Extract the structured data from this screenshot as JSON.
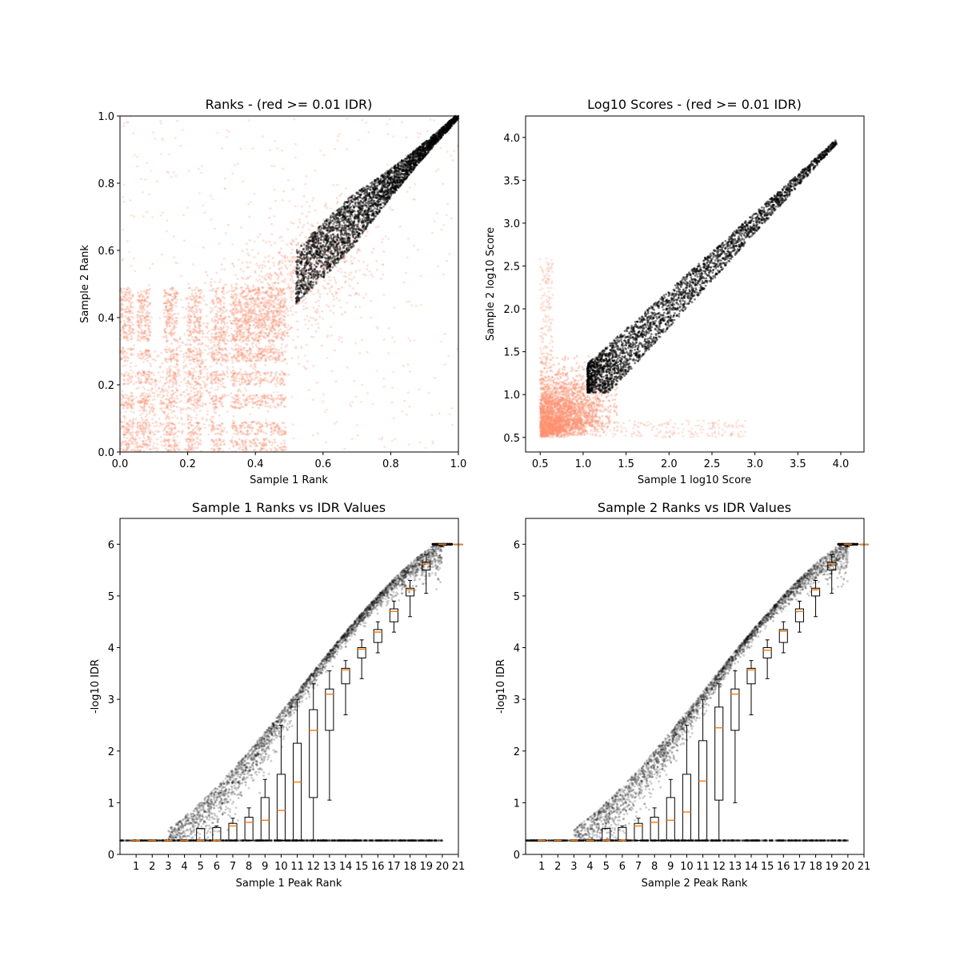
{
  "chart_data": [
    {
      "id": "ranks",
      "type": "scatter",
      "title": "Ranks - (red >= 0.01 IDR)",
      "xlabel": "Sample 1 Rank",
      "ylabel": "Sample 2 Rank",
      "xlim": [
        0,
        1
      ],
      "ylim": [
        0,
        1
      ],
      "xticks": [
        0.0,
        0.2,
        0.4,
        0.6,
        0.8,
        1.0
      ],
      "yticks": [
        0.0,
        0.2,
        0.4,
        0.6,
        0.8,
        1.0
      ],
      "xtick_labels": [
        "0.0",
        "0.2",
        "0.4",
        "0.6",
        "0.8",
        "1.0"
      ],
      "ytick_labels": [
        "0.0",
        "0.2",
        "0.4",
        "0.6",
        "0.8",
        "1.0"
      ],
      "colors": {
        "low_idr": "#ff9071",
        "high_idr": "#000000"
      }
    },
    {
      "id": "scores",
      "type": "scatter",
      "title": "Log10 Scores - (red >= 0.01 IDR)",
      "xlabel": "Sample 1 log10 Score",
      "ylabel": "Sample 2 log10 Score",
      "xlim": [
        0.33,
        4.27
      ],
      "ylim": [
        0.33,
        4.25
      ],
      "xticks": [
        0.5,
        1.0,
        1.5,
        2.0,
        2.5,
        3.0,
        3.5,
        4.0
      ],
      "yticks": [
        0.5,
        1.0,
        1.5,
        2.0,
        2.5,
        3.0,
        3.5,
        4.0
      ],
      "xtick_labels": [
        "0.5",
        "1.0",
        "1.5",
        "2.0",
        "2.5",
        "3.0",
        "3.5",
        "4.0"
      ],
      "ytick_labels": [
        "0.5",
        "1.0",
        "1.5",
        "2.0",
        "2.5",
        "3.0",
        "3.5",
        "4.0"
      ],
      "colors": {
        "low_idr": "#ff9071",
        "high_idr": "#000000"
      }
    },
    {
      "id": "s1idr",
      "type": "scatter",
      "title": "Sample 1 Ranks vs IDR Values",
      "xlabel": "Sample 1 Peak Rank",
      "ylabel": "-log10 IDR",
      "xlim": [
        0,
        21
      ],
      "ylim": [
        0,
        6.5
      ],
      "xticks": [
        1,
        2,
        3,
        4,
        5,
        6,
        7,
        8,
        9,
        10,
        11,
        12,
        13,
        14,
        15,
        16,
        17,
        18,
        19,
        20,
        21
      ],
      "yticks": [
        0,
        1,
        2,
        3,
        4,
        5,
        6
      ],
      "xtick_labels": [
        "1",
        "2",
        "3",
        "4",
        "5",
        "6",
        "7",
        "8",
        "9",
        "10",
        "11",
        "12",
        "13",
        "14",
        "15",
        "16",
        "17",
        "18",
        "19",
        "20",
        "21"
      ],
      "ytick_labels": [
        "0",
        "1",
        "2",
        "3",
        "4",
        "5",
        "6"
      ],
      "boxes": [
        {
          "pos": 1,
          "q1": 0.27,
          "med": 0.27,
          "q3": 0.27,
          "lo": 0.27,
          "hi": 0.27
        },
        {
          "pos": 2,
          "q1": 0.27,
          "med": 0.27,
          "q3": 0.27,
          "lo": 0.27,
          "hi": 0.27
        },
        {
          "pos": 3,
          "q1": 0.27,
          "med": 0.27,
          "q3": 0.27,
          "lo": 0.27,
          "hi": 0.27
        },
        {
          "pos": 4,
          "q1": 0.27,
          "med": 0.27,
          "q3": 0.27,
          "lo": 0.27,
          "hi": 0.27
        },
        {
          "pos": 5,
          "q1": 0.27,
          "med": 0.27,
          "q3": 0.5,
          "lo": 0.27,
          "hi": 0.5
        },
        {
          "pos": 6,
          "q1": 0.27,
          "med": 0.27,
          "q3": 0.52,
          "lo": 0.27,
          "hi": 0.55
        },
        {
          "pos": 7,
          "q1": 0.27,
          "med": 0.55,
          "q3": 0.6,
          "lo": 0.27,
          "hi": 0.7
        },
        {
          "pos": 8,
          "q1": 0.27,
          "med": 0.62,
          "q3": 0.72,
          "lo": 0.27,
          "hi": 0.9
        },
        {
          "pos": 9,
          "q1": 0.27,
          "med": 0.66,
          "q3": 1.1,
          "lo": 0.27,
          "hi": 1.45
        },
        {
          "pos": 10,
          "q1": 0.27,
          "med": 0.85,
          "q3": 1.55,
          "lo": 0.27,
          "hi": 2.5
        },
        {
          "pos": 11,
          "q1": 0.27,
          "med": 1.4,
          "q3": 2.15,
          "lo": 0.27,
          "hi": 3.0
        },
        {
          "pos": 12,
          "q1": 1.1,
          "med": 2.4,
          "q3": 2.8,
          "lo": 0.27,
          "hi": 3.3
        },
        {
          "pos": 13,
          "q1": 2.4,
          "med": 3.1,
          "q3": 3.2,
          "lo": 1.05,
          "hi": 3.55
        },
        {
          "pos": 14,
          "q1": 3.3,
          "med": 3.57,
          "q3": 3.6,
          "lo": 2.7,
          "hi": 3.75
        },
        {
          "pos": 15,
          "q1": 3.8,
          "med": 3.97,
          "q3": 4.0,
          "lo": 3.4,
          "hi": 4.15
        },
        {
          "pos": 16,
          "q1": 4.1,
          "med": 4.3,
          "q3": 4.35,
          "lo": 3.9,
          "hi": 4.5
        },
        {
          "pos": 17,
          "q1": 4.5,
          "med": 4.7,
          "q3": 4.75,
          "lo": 4.3,
          "hi": 4.9
        },
        {
          "pos": 18,
          "q1": 5.0,
          "med": 5.12,
          "q3": 5.15,
          "lo": 4.6,
          "hi": 5.3
        },
        {
          "pos": 19,
          "q1": 5.5,
          "med": 5.62,
          "q3": 5.65,
          "lo": 5.05,
          "hi": 5.8
        },
        {
          "pos": 20,
          "q1": 5.98,
          "med": 6.0,
          "q3": 6.0,
          "lo": 5.95,
          "hi": 6.0
        },
        {
          "pos": 21,
          "q1": 6.0,
          "med": 6.0,
          "q3": 6.0,
          "lo": 6.0,
          "hi": 6.0
        }
      ],
      "colors": {
        "points": "#000000",
        "median": "#ff7f0e"
      }
    },
    {
      "id": "s2idr",
      "type": "scatter",
      "title": "Sample 2 Ranks vs IDR Values",
      "xlabel": "Sample 2 Peak Rank",
      "ylabel": "-log10 IDR",
      "xlim": [
        0,
        21
      ],
      "ylim": [
        0,
        6.5
      ],
      "xticks": [
        1,
        2,
        3,
        4,
        5,
        6,
        7,
        8,
        9,
        10,
        11,
        12,
        13,
        14,
        15,
        16,
        17,
        18,
        19,
        20,
        21
      ],
      "yticks": [
        0,
        1,
        2,
        3,
        4,
        5,
        6
      ],
      "xtick_labels": [
        "1",
        "2",
        "3",
        "4",
        "5",
        "6",
        "7",
        "8",
        "9",
        "10",
        "11",
        "12",
        "13",
        "14",
        "15",
        "16",
        "17",
        "18",
        "19",
        "20",
        "21"
      ],
      "ytick_labels": [
        "0",
        "1",
        "2",
        "3",
        "4",
        "5",
        "6"
      ],
      "boxes": [
        {
          "pos": 1,
          "q1": 0.27,
          "med": 0.27,
          "q3": 0.27,
          "lo": 0.27,
          "hi": 0.27
        },
        {
          "pos": 2,
          "q1": 0.27,
          "med": 0.27,
          "q3": 0.27,
          "lo": 0.27,
          "hi": 0.27
        },
        {
          "pos": 3,
          "q1": 0.27,
          "med": 0.27,
          "q3": 0.27,
          "lo": 0.27,
          "hi": 0.27
        },
        {
          "pos": 4,
          "q1": 0.27,
          "med": 0.27,
          "q3": 0.27,
          "lo": 0.27,
          "hi": 0.27
        },
        {
          "pos": 5,
          "q1": 0.27,
          "med": 0.27,
          "q3": 0.5,
          "lo": 0.27,
          "hi": 0.5
        },
        {
          "pos": 6,
          "q1": 0.27,
          "med": 0.27,
          "q3": 0.52,
          "lo": 0.27,
          "hi": 0.55
        },
        {
          "pos": 7,
          "q1": 0.27,
          "med": 0.55,
          "q3": 0.6,
          "lo": 0.27,
          "hi": 0.7
        },
        {
          "pos": 8,
          "q1": 0.27,
          "med": 0.62,
          "q3": 0.72,
          "lo": 0.27,
          "hi": 0.9
        },
        {
          "pos": 9,
          "q1": 0.27,
          "med": 0.66,
          "q3": 1.1,
          "lo": 0.27,
          "hi": 1.45
        },
        {
          "pos": 10,
          "q1": 0.27,
          "med": 0.82,
          "q3": 1.55,
          "lo": 0.27,
          "hi": 2.5
        },
        {
          "pos": 11,
          "q1": 0.27,
          "med": 1.42,
          "q3": 2.2,
          "lo": 0.27,
          "hi": 3.0
        },
        {
          "pos": 12,
          "q1": 1.05,
          "med": 2.45,
          "q3": 2.85,
          "lo": 0.27,
          "hi": 3.3
        },
        {
          "pos": 13,
          "q1": 2.4,
          "med": 3.1,
          "q3": 3.2,
          "lo": 1.0,
          "hi": 3.55
        },
        {
          "pos": 14,
          "q1": 3.3,
          "med": 3.57,
          "q3": 3.6,
          "lo": 2.7,
          "hi": 3.75
        },
        {
          "pos": 15,
          "q1": 3.8,
          "med": 3.95,
          "q3": 4.0,
          "lo": 3.4,
          "hi": 4.15
        },
        {
          "pos": 16,
          "q1": 4.1,
          "med": 4.32,
          "q3": 4.35,
          "lo": 3.9,
          "hi": 4.5
        },
        {
          "pos": 17,
          "q1": 4.5,
          "med": 4.7,
          "q3": 4.75,
          "lo": 4.3,
          "hi": 4.9
        },
        {
          "pos": 18,
          "q1": 5.0,
          "med": 5.12,
          "q3": 5.15,
          "lo": 4.6,
          "hi": 5.3
        },
        {
          "pos": 19,
          "q1": 5.5,
          "med": 5.62,
          "q3": 5.65,
          "lo": 5.05,
          "hi": 5.8
        },
        {
          "pos": 20,
          "q1": 5.98,
          "med": 6.0,
          "q3": 6.0,
          "lo": 5.95,
          "hi": 6.0
        },
        {
          "pos": 21,
          "q1": 6.0,
          "med": 6.0,
          "q3": 6.0,
          "lo": 6.0,
          "hi": 6.0
        }
      ],
      "colors": {
        "points": "#000000",
        "median": "#ff7f0e"
      }
    }
  ]
}
